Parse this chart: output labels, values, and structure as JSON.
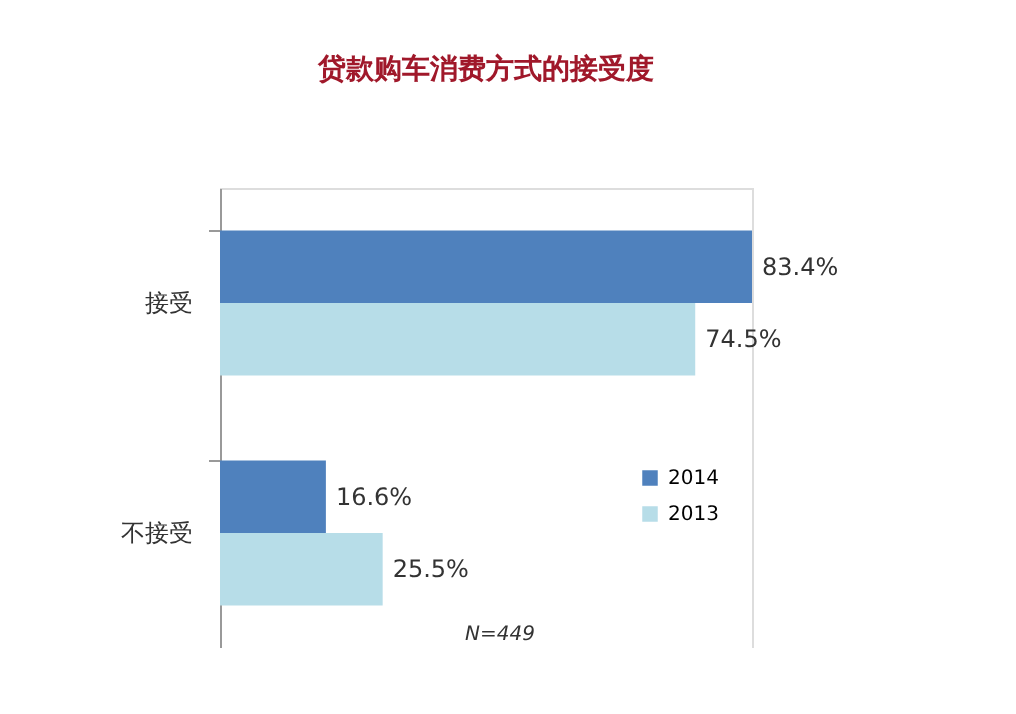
{
  "chart_data": {
    "type": "bar",
    "orientation": "horizontal",
    "title": "贷款购车消费方式的接受度",
    "categories": [
      "接受",
      "不接受"
    ],
    "series": [
      {
        "name": "2014",
        "color": "#4f81bd",
        "values": [
          83.4,
          16.6
        ],
        "value_labels": [
          "83.4%",
          "16.6%"
        ]
      },
      {
        "name": "2013",
        "color": "#b7dde8",
        "values": [
          74.5,
          25.5
        ],
        "value_labels": [
          "74.5%",
          "25.5%"
        ]
      }
    ],
    "legend": "bottom right",
    "annotations": [
      "N=449"
    ],
    "tick_labels": "y",
    "grid": false
  }
}
